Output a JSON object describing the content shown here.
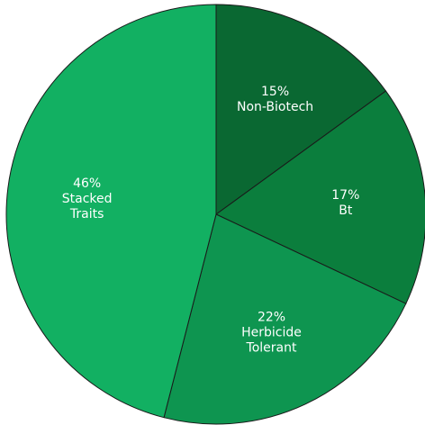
{
  "chart_data": {
    "type": "pie",
    "categories": [
      "Non-Biotech",
      "Bt",
      "Herbicide Tolerant",
      "Stacked Traits"
    ],
    "values": [
      15,
      17,
      22,
      46
    ],
    "value_labels": [
      "15%",
      "17%",
      "22%",
      "46%"
    ],
    "colors": [
      "#0a6832",
      "#0b7e3d",
      "#0e9550",
      "#12b062"
    ]
  }
}
